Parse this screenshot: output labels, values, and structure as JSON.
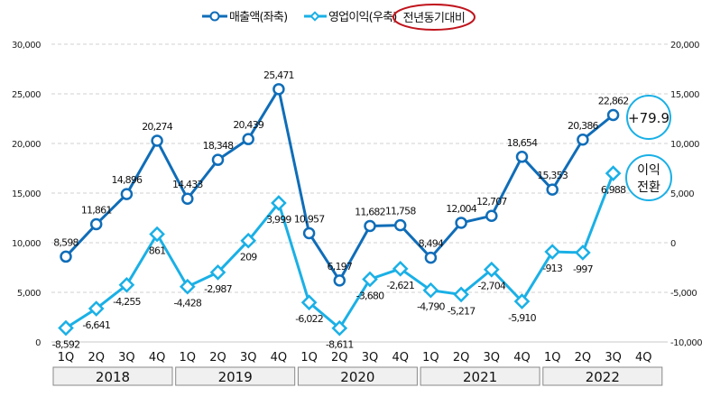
{
  "chart_data": {
    "type": "line",
    "legend": {
      "sales": "매출액(좌축)",
      "profit": "영업이익(우축)",
      "yoy": "전년동기대비"
    },
    "legend_position": "top",
    "years": [
      "2018",
      "2019",
      "2020",
      "2021",
      "2022"
    ],
    "quarters": [
      "1Q",
      "2Q",
      "3Q",
      "4Q",
      "1Q",
      "2Q",
      "3Q",
      "4Q",
      "1Q",
      "2Q",
      "3Q",
      "4Q",
      "1Q",
      "2Q",
      "3Q",
      "4Q",
      "1Q",
      "2Q",
      "3Q",
      "4Q"
    ],
    "series": [
      {
        "name": "매출액(좌축)",
        "axis": "left",
        "color": "#0f6db8",
        "values": [
          8598,
          11861,
          14896,
          20274,
          14433,
          18348,
          20439,
          25471,
          10957,
          6197,
          11682,
          11758,
          8494,
          12004,
          12707,
          18654,
          15353,
          20386,
          22862,
          null
        ],
        "labels": [
          "8,598",
          "11,861",
          "14,896",
          "20,274",
          "14,433",
          "18,348",
          "20,439",
          "25,471",
          "10,957",
          "6,197",
          "11,682",
          "11,758",
          "8,494",
          "12,004",
          "12,707",
          "18,654",
          "15,353",
          "20,386",
          "22,862",
          ""
        ]
      },
      {
        "name": "영업이익(우축)",
        "axis": "right",
        "color": "#1ab0e6",
        "values": [
          -8592,
          -6641,
          -4255,
          861,
          -4428,
          -2987,
          209,
          3999,
          -6022,
          -8611,
          -3680,
          -2621,
          -4790,
          -5217,
          -2704,
          -5910,
          -913,
          -997,
          6988,
          null
        ],
        "labels": [
          "-8,592",
          "-6,641",
          "-4,255",
          "861",
          "-4,428",
          "-2,987",
          "209",
          "3,999",
          "-6,022",
          "-8,611",
          "-3,680",
          "-2,621",
          "-4,790",
          "-5,217",
          "-2,704",
          "-5,910",
          "-913",
          "-997",
          "6,988",
          ""
        ]
      }
    ],
    "left_axis": {
      "ylim": [
        0,
        30000
      ],
      "ticks": [
        "0",
        "5,000",
        "10,000",
        "15,000",
        "20,000",
        "25,000",
        "30,000"
      ]
    },
    "right_axis": {
      "ylim": [
        -10000,
        20000
      ],
      "ticks": [
        "-10,000",
        "-5,000",
        "0",
        "5,000",
        "10,000",
        "15,000",
        "20,000"
      ]
    },
    "grid": true,
    "annotations": {
      "sales_yoy": "+79.9",
      "profit_yoy_line1": "이익",
      "profit_yoy_line2": "전환"
    }
  }
}
